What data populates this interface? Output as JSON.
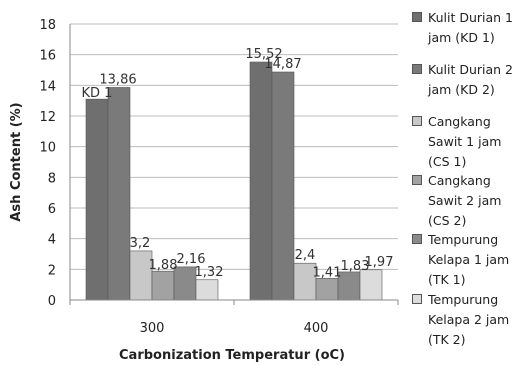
{
  "chart_data": {
    "type": "bar",
    "categories": [
      "300",
      "400"
    ],
    "series": [
      {
        "name": "Kulit Durian 1 jam (KD 1)",
        "values": [
          13.1,
          15.52
        ],
        "labels": [
          "KD 1",
          "15,52"
        ],
        "color": "#6f6f6f"
      },
      {
        "name": "Kulit Durian 2 jam (KD 2)",
        "values": [
          13.86,
          14.87
        ],
        "labels": [
          "13,86",
          "14,87"
        ],
        "color": "#7a7a7a"
      },
      {
        "name": "Cangkang Sawit 1 jam (CS 1)",
        "values": [
          3.2,
          2.4
        ],
        "labels": [
          "3,2",
          "2,4"
        ],
        "color": "#c8c8c8"
      },
      {
        "name": "Cangkang Sawit 2 jam (CS 2)",
        "values": [
          1.88,
          1.41
        ],
        "labels": [
          "1,88",
          "1,41"
        ],
        "color": "#a2a2a2"
      },
      {
        "name": "Tempurung Kelapa 1 jam (TK 1)",
        "values": [
          2.16,
          1.83
        ],
        "labels": [
          "2,16",
          "1,83"
        ],
        "color": "#8a8a8a"
      },
      {
        "name": "Tempurung Kelapa 2 jam (TK 2)",
        "values": [
          1.32,
          1.97
        ],
        "labels": [
          "1,32",
          "1,97"
        ],
        "color": "#dcdcdc"
      }
    ],
    "xlabel": "Carbonization Temperatur (oC)",
    "ylabel": "Ash Content  (%)",
    "ylim": [
      0,
      18
    ],
    "yticks": [
      "0",
      "2",
      "4",
      "6",
      "8",
      "10",
      "12",
      "14",
      "16",
      "18"
    ],
    "grid": true,
    "legend": "right"
  },
  "legend": {
    "items": [
      "Kulit Durian 1\njam (KD 1)",
      "Kulit Durian 2\njam (KD 2)",
      "Cangkang\nSawit 1 jam\n(CS 1)",
      "Cangkang\nSawit 2 jam\n(CS 2)",
      "Tempurung\nKelapa 1 jam\n(TK 1)",
      "Tempurung\nKelapa 2 jam\n(TK 2)"
    ]
  }
}
